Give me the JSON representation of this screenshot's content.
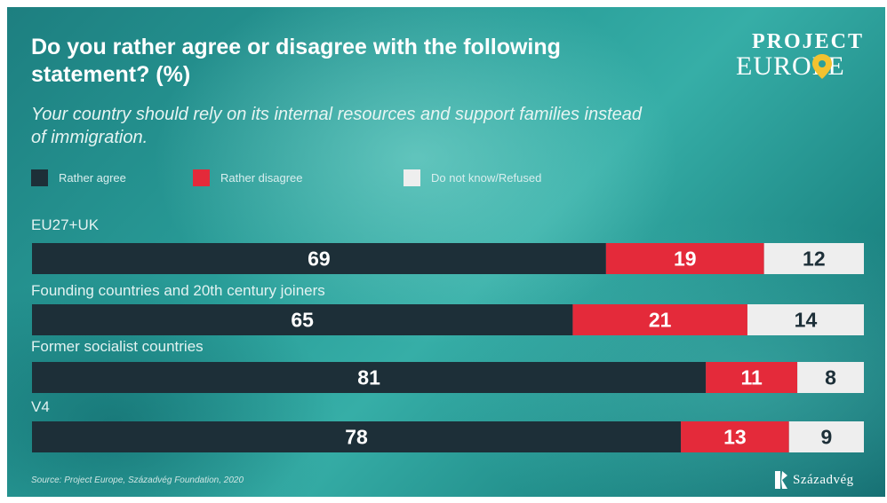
{
  "title": "Do you rather agree or disagree with the following statement? (%)",
  "subtitle": "Your country should rely on its internal resources and support families instead of immigration.",
  "logo": {
    "line1": "PROJECT",
    "line2": "EUROPE"
  },
  "legend": [
    {
      "label": "Rather agree",
      "color": "#1d2f38"
    },
    {
      "label": "Rather disagree",
      "color": "#e42a3a"
    },
    {
      "label": "Do not know/Refused",
      "color": "#eeeeee"
    }
  ],
  "source": "Source: Project Europe, Századvég Foundation, 2020",
  "brand": "Századvég",
  "chart_data": {
    "type": "bar",
    "orientation": "horizontal",
    "stacked": true,
    "categories": [
      "EU27+UK",
      "Founding countries and 20th century joiners",
      "Former socialist countries",
      "V4"
    ],
    "series": [
      {
        "name": "Rather agree",
        "values": [
          69,
          65,
          81,
          78
        ],
        "color": "#1d2f38"
      },
      {
        "name": "Rather disagree",
        "values": [
          19,
          21,
          11,
          13
        ],
        "color": "#e42a3a"
      },
      {
        "name": "Do not know/Refused",
        "values": [
          12,
          14,
          8,
          9
        ],
        "color": "#eeeeee"
      }
    ],
    "xlim": [
      0,
      100
    ],
    "grid": false,
    "legend_position": "top-left"
  }
}
